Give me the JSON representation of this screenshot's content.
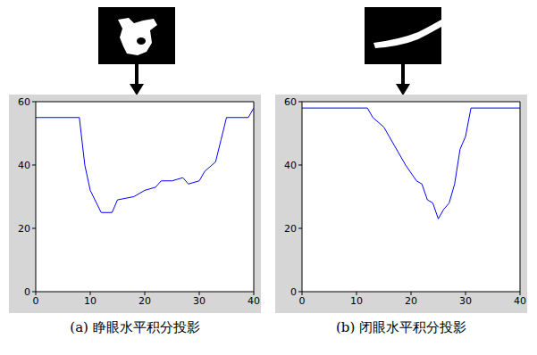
{
  "chart_data": [
    {
      "type": "line",
      "title": "(a) 睁眼水平积分投影",
      "x": [
        0,
        8,
        9,
        10,
        12,
        14,
        15,
        18,
        20,
        22,
        23,
        25,
        27,
        28,
        30,
        31,
        33,
        34,
        35,
        39,
        40
      ],
      "values": [
        55,
        55,
        40,
        32,
        25,
        25,
        29,
        30,
        32,
        33,
        35,
        35,
        36,
        34,
        35,
        38,
        41,
        48,
        55,
        55,
        58
      ],
      "color": "#0000ff",
      "xlim": [
        0,
        40
      ],
      "xticks": [
        0,
        10,
        20,
        30,
        40
      ],
      "ylim": [
        0,
        60
      ],
      "yticks": [
        0,
        20,
        40,
        60
      ],
      "grid": false
    },
    {
      "type": "line",
      "title": "(b) 闭眼水平积分投影",
      "x": [
        0,
        12,
        13,
        15,
        17,
        19,
        21,
        22,
        23,
        24,
        25,
        26,
        27,
        28,
        29,
        30,
        31,
        40
      ],
      "values": [
        58,
        58,
        55,
        52,
        46,
        40,
        35,
        34,
        29,
        28,
        23,
        26,
        28,
        34,
        45,
        49,
        58,
        58
      ],
      "color": "#0000ff",
      "xlim": [
        0,
        40
      ],
      "xticks": [
        0,
        10,
        20,
        30,
        40
      ],
      "ylim": [
        0,
        60
      ],
      "yticks": [
        0,
        20,
        40,
        60
      ],
      "grid": false
    }
  ]
}
